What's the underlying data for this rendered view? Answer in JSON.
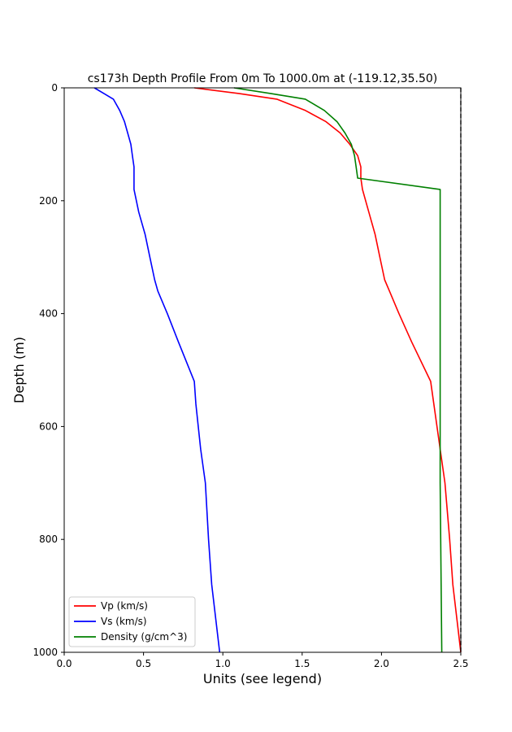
{
  "chart_data": {
    "type": "line",
    "title": "cs173h Depth Profile From 0m To 1000.0m at (-119.12,35.50)",
    "xlabel": "Units (see legend)",
    "ylabel": "Depth (m)",
    "xlim": [
      0,
      2.5
    ],
    "ylim": [
      1000,
      0
    ],
    "y_inverted": true,
    "x_ticks": [
      "0.0",
      "0.5",
      "1.0",
      "1.5",
      "2.0",
      "2.5"
    ],
    "y_ticks": [
      "0",
      "200",
      "400",
      "600",
      "800",
      "1000"
    ],
    "grid": false,
    "legend_position": "bottom-left",
    "vertical_reference_line": {
      "x": 2.5,
      "style": "dashed",
      "color": "#000000"
    },
    "series": [
      {
        "name": "Vp (km/s)",
        "color": "#ff0000",
        "points": [
          [
            0.82,
            0
          ],
          [
            1.1,
            10
          ],
          [
            1.34,
            20
          ],
          [
            1.52,
            40
          ],
          [
            1.65,
            60
          ],
          [
            1.74,
            80
          ],
          [
            1.8,
            100
          ],
          [
            1.85,
            120
          ],
          [
            1.87,
            140
          ],
          [
            1.87,
            160
          ],
          [
            1.88,
            180
          ],
          [
            1.92,
            220
          ],
          [
            1.96,
            260
          ],
          [
            1.99,
            300
          ],
          [
            2.02,
            340
          ],
          [
            2.05,
            360
          ],
          [
            2.11,
            400
          ],
          [
            2.19,
            450
          ],
          [
            2.31,
            520
          ],
          [
            2.33,
            560
          ],
          [
            2.37,
            640
          ],
          [
            2.4,
            700
          ],
          [
            2.43,
            800
          ],
          [
            2.45,
            880
          ],
          [
            2.5,
            1000
          ]
        ]
      },
      {
        "name": "Vs (km/s)",
        "color": "#0000ff",
        "points": [
          [
            0.19,
            0
          ],
          [
            0.25,
            10
          ],
          [
            0.31,
            20
          ],
          [
            0.35,
            40
          ],
          [
            0.38,
            60
          ],
          [
            0.4,
            80
          ],
          [
            0.42,
            100
          ],
          [
            0.43,
            120
          ],
          [
            0.44,
            140
          ],
          [
            0.44,
            160
          ],
          [
            0.44,
            180
          ],
          [
            0.47,
            220
          ],
          [
            0.51,
            260
          ],
          [
            0.54,
            300
          ],
          [
            0.57,
            340
          ],
          [
            0.59,
            360
          ],
          [
            0.65,
            400
          ],
          [
            0.72,
            450
          ],
          [
            0.82,
            520
          ],
          [
            0.83,
            560
          ],
          [
            0.86,
            640
          ],
          [
            0.89,
            700
          ],
          [
            0.91,
            800
          ],
          [
            0.93,
            880
          ],
          [
            0.98,
            1000
          ]
        ]
      },
      {
        "name": "Density (g/cm^3)",
        "color": "#008000",
        "points": [
          [
            1.07,
            0
          ],
          [
            1.3,
            10
          ],
          [
            1.52,
            20
          ],
          [
            1.64,
            40
          ],
          [
            1.72,
            60
          ],
          [
            1.77,
            80
          ],
          [
            1.81,
            100
          ],
          [
            1.83,
            120
          ],
          [
            1.84,
            140
          ],
          [
            1.85,
            160
          ],
          [
            2.37,
            180
          ],
          [
            2.37,
            400
          ],
          [
            2.37,
            700
          ],
          [
            2.38,
            1000
          ]
        ]
      }
    ]
  }
}
